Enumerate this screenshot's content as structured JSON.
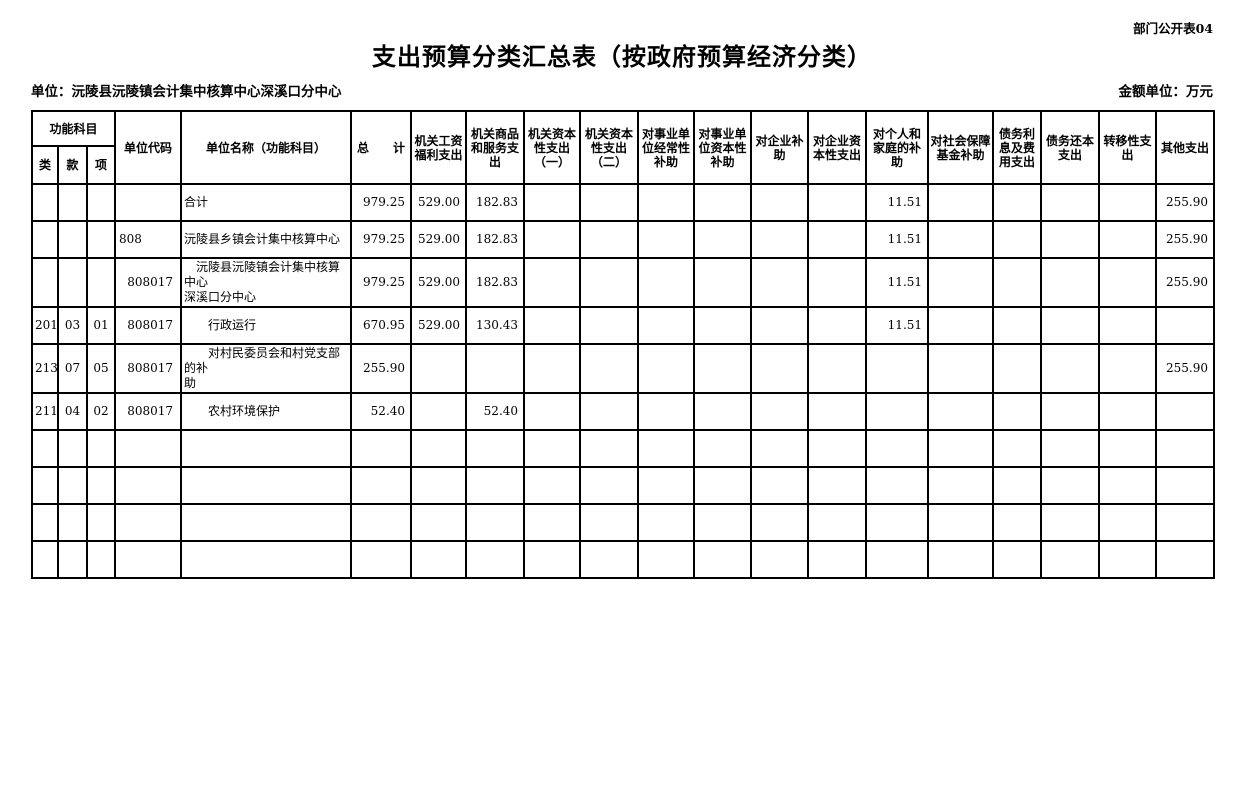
{
  "page": {
    "doc_ref": "部门公开表04",
    "title": "支出预算分类汇总表（按政府预算经济分类）",
    "unit_label": "单位：沅陵县沅陵镇会计集中核算中心深溪口分中心",
    "amount_unit_label": "金额单位：万元"
  },
  "table": {
    "header": {
      "function_group": "功能科目",
      "function_subcols": [
        "类",
        "款",
        "项"
      ],
      "unit_code": "单位代码",
      "unit_name": "单位名称（功能科目）",
      "columns": [
        "总　　计",
        "机关工资福利支出",
        "机关商品和服务支出",
        "机关资本性支出（一）",
        "机关资本性支出（二）",
        "对事业单位经常性补助",
        "对事业单位资本性补助",
        "对企业补助",
        "对企业资本性支出",
        "对个人和家庭的补助",
        "对社会保障基金补助",
        "债务利息及费用支出",
        "债务还本支出",
        "转移性支出",
        "其他支出"
      ]
    },
    "rows": [
      {
        "lei": "",
        "kuan": "",
        "xiang": "",
        "code": "",
        "code_align": "left",
        "name": "合计",
        "values": [
          "979.25",
          "529.00",
          "182.83",
          "",
          "",
          "",
          "",
          "",
          "",
          "11.51",
          "",
          "",
          "",
          "",
          "255.90"
        ]
      },
      {
        "lei": "",
        "kuan": "",
        "xiang": "",
        "code": "808",
        "code_align": "left",
        "name": "沅陵县乡镇会计集中核算中心",
        "values": [
          "979.25",
          "529.00",
          "182.83",
          "",
          "",
          "",
          "",
          "",
          "",
          "11.51",
          "",
          "",
          "",
          "",
          "255.90"
        ]
      },
      {
        "lei": "",
        "kuan": "",
        "xiang": "",
        "code": "808017",
        "code_align": "right",
        "name": "　沅陵县沅陵镇会计集中核算中心\n深溪口分中心",
        "values": [
          "979.25",
          "529.00",
          "182.83",
          "",
          "",
          "",
          "",
          "",
          "",
          "11.51",
          "",
          "",
          "",
          "",
          "255.90"
        ]
      },
      {
        "lei": "201",
        "kuan": "03",
        "xiang": "01",
        "code": "808017",
        "code_align": "right",
        "name": "　　行政运行",
        "values": [
          "670.95",
          "529.00",
          "130.43",
          "",
          "",
          "",
          "",
          "",
          "",
          "11.51",
          "",
          "",
          "",
          "",
          ""
        ]
      },
      {
        "lei": "213",
        "kuan": "07",
        "xiang": "05",
        "code": "808017",
        "code_align": "right",
        "name": "　　对村民委员会和村党支部的补\n助",
        "values": [
          "255.90",
          "",
          "",
          "",
          "",
          "",
          "",
          "",
          "",
          "",
          "",
          "",
          "",
          "",
          "255.90"
        ]
      },
      {
        "lei": "211",
        "kuan": "04",
        "xiang": "02",
        "code": "808017",
        "code_align": "right",
        "name": "　　农村环境保护",
        "values": [
          "52.40",
          "",
          "52.40",
          "",
          "",
          "",
          "",
          "",
          "",
          "",
          "",
          "",
          "",
          "",
          ""
        ]
      },
      {
        "lei": "",
        "kuan": "",
        "xiang": "",
        "code": "",
        "code_align": "left",
        "name": "",
        "values": [
          "",
          "",
          "",
          "",
          "",
          "",
          "",
          "",
          "",
          "",
          "",
          "",
          "",
          "",
          ""
        ]
      },
      {
        "lei": "",
        "kuan": "",
        "xiang": "",
        "code": "",
        "code_align": "left",
        "name": "",
        "values": [
          "",
          "",
          "",
          "",
          "",
          "",
          "",
          "",
          "",
          "",
          "",
          "",
          "",
          "",
          ""
        ]
      },
      {
        "lei": "",
        "kuan": "",
        "xiang": "",
        "code": "",
        "code_align": "left",
        "name": "",
        "values": [
          "",
          "",
          "",
          "",
          "",
          "",
          "",
          "",
          "",
          "",
          "",
          "",
          "",
          "",
          ""
        ]
      },
      {
        "lei": "",
        "kuan": "",
        "xiang": "",
        "code": "",
        "code_align": "left",
        "name": "",
        "values": [
          "",
          "",
          "",
          "",
          "",
          "",
          "",
          "",
          "",
          "",
          "",
          "",
          "",
          "",
          ""
        ]
      }
    ]
  }
}
